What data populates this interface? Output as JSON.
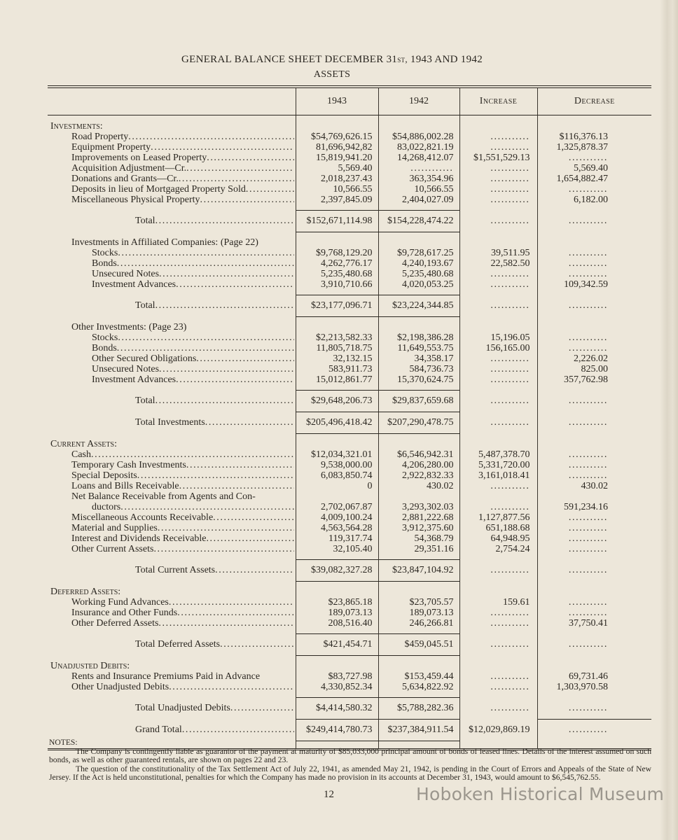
{
  "header": {
    "title_main": "GENERAL BALANCE SHEET DECEMBER 31",
    "title_ordinal": "st,",
    "title_rest": " 1943 AND 1942",
    "subtitle": "ASSETS"
  },
  "columns": [
    "1943",
    "1942",
    "Increase",
    "Decrease"
  ],
  "rows": [
    {
      "t": "head",
      "i": 0,
      "label": "Investments:"
    },
    {
      "t": "item",
      "i": 1,
      "label": "Road Property",
      "a": "$54,769,626.15",
      "b": "$54,886,002.28",
      "inc": "...........",
      "dec": "$116,376.13"
    },
    {
      "t": "item",
      "i": 1,
      "label": "Equipment Property",
      "a": "81,696,942,82",
      "b": "83,022,821.19",
      "inc": "...........",
      "dec": "1,325,878.37"
    },
    {
      "t": "item",
      "i": 1,
      "label": "Improvements on Leased Property",
      "a": "15,819,941.20",
      "b": "14,268,412.07",
      "inc": "$1,551,529.13",
      "dec": "..........."
    },
    {
      "t": "item",
      "i": 1,
      "label": "Acquisition Adjustment—Cr.",
      "a": "5,569.40",
      "b": "............",
      "inc": "...........",
      "dec": "5,569.40"
    },
    {
      "t": "item",
      "i": 1,
      "label": "Donations and Grants—Cr.",
      "a": "2,018,237.43",
      "b": "363,354.96",
      "inc": "...........",
      "dec": "1,654,882.47"
    },
    {
      "t": "item",
      "i": 1,
      "label": "Deposits in lieu of Mortgaged Property Sold",
      "a": "10,566.55",
      "b": "10,566.55",
      "inc": "...........",
      "dec": "..........."
    },
    {
      "t": "item",
      "i": 1,
      "label": "Miscellaneous Physical Property",
      "a": "2,397,845.09",
      "b": "2,404,027.09",
      "inc": "...........",
      "dec": "6,182.00"
    },
    {
      "t": "total",
      "i": 3,
      "label": "Total",
      "a": "$152,671,114.98",
      "b": "$154,228,474.22",
      "inc": "...........",
      "dec": "..........."
    },
    {
      "t": "sub",
      "i": 1,
      "label": "Investments in Affiliated Companies: (Page 22)"
    },
    {
      "t": "item",
      "i": 2,
      "label": "Stocks",
      "a": "$9,768,129.20",
      "b": "$9,728,617.25",
      "inc": "39,511.95",
      "dec": "..........."
    },
    {
      "t": "item",
      "i": 2,
      "label": "Bonds",
      "a": "4,262,776.17",
      "b": "4,240,193.67",
      "inc": "22,582.50",
      "dec": "..........."
    },
    {
      "t": "item",
      "i": 2,
      "label": "Unsecured Notes",
      "a": "5,235,480.68",
      "b": "5,235,480.68",
      "inc": "...........",
      "dec": "..........."
    },
    {
      "t": "item",
      "i": 2,
      "label": "Investment Advances",
      "a": "3,910,710.66",
      "b": "4,020,053.25",
      "inc": "...........",
      "dec": "109,342.59"
    },
    {
      "t": "total",
      "i": 3,
      "label": "Total",
      "a": "$23,177,096.71",
      "b": "$23,224,344.85",
      "inc": "...........",
      "dec": "..........."
    },
    {
      "t": "sub",
      "i": 1,
      "label": "Other Investments: (Page 23)"
    },
    {
      "t": "item",
      "i": 2,
      "label": "Stocks",
      "a": "$2,213,582.33",
      "b": "$2,198,386.28",
      "inc": "15,196.05",
      "dec": "..........."
    },
    {
      "t": "item",
      "i": 2,
      "label": "Bonds",
      "a": "11,805,718.75",
      "b": "11,649,553.75",
      "inc": "156,165.00",
      "dec": "..........."
    },
    {
      "t": "item",
      "i": 2,
      "label": "Other Secured Obligations",
      "a": "32,132.15",
      "b": "34,358.17",
      "inc": "...........",
      "dec": "2,226.02"
    },
    {
      "t": "item",
      "i": 2,
      "label": "Unsecured Notes",
      "a": "583,911.73",
      "b": "584,736.73",
      "inc": "...........",
      "dec": "825.00"
    },
    {
      "t": "item",
      "i": 2,
      "label": "Investment Advances",
      "a": "15,012,861.77",
      "b": "15,370,624.75",
      "inc": "...........",
      "dec": "357,762.98"
    },
    {
      "t": "total",
      "i": 3,
      "label": "Total",
      "a": "$29,648,206.73",
      "b": "$29,837,659.68",
      "inc": "...........",
      "dec": "..........."
    },
    {
      "t": "total2",
      "i": 3,
      "label": "Total Investments",
      "a": "$205,496,418.42",
      "b": "$207,290,478.75",
      "inc": "...........",
      "dec": "..........."
    },
    {
      "t": "head",
      "i": 0,
      "label": "Current Assets:"
    },
    {
      "t": "item",
      "i": 1,
      "label": "Cash",
      "a": "$12,034,321.01",
      "b": "$6,546,942.31",
      "inc": "5,487,378.70",
      "dec": "..........."
    },
    {
      "t": "item",
      "i": 1,
      "label": "Temporary Cash Investments",
      "a": "9,538,000.00",
      "b": "4,206,280.00",
      "inc": "5,331,720.00",
      "dec": "..........."
    },
    {
      "t": "item",
      "i": 1,
      "label": "Special Deposits",
      "a": "6,083,850.74",
      "b": "2,922,832.33",
      "inc": "3,161,018.41",
      "dec": "..........."
    },
    {
      "t": "item",
      "i": 1,
      "label": "Loans and Bills Receivable",
      "a": "0",
      "b": "430.02",
      "inc": "...........",
      "dec": "430.02"
    },
    {
      "t": "sub",
      "i": 1,
      "label": "Net Balance Receivable from Agents and Con-"
    },
    {
      "t": "item",
      "i": 2,
      "label": "ductors",
      "a": "2,702,067.87",
      "b": "3,293,302.03",
      "inc": "...........",
      "dec": "591,234.16"
    },
    {
      "t": "item",
      "i": 1,
      "label": "Miscellaneous Accounts Receivable",
      "a": "4,009,100.24",
      "b": "2,881,222.68",
      "inc": "1,127,877.56",
      "dec": "..........."
    },
    {
      "t": "item",
      "i": 1,
      "label": "Material and Supplies",
      "a": "4,563,564.28",
      "b": "3,912,375.60",
      "inc": "651,188.68",
      "dec": "..........."
    },
    {
      "t": "item",
      "i": 1,
      "label": "Interest and Dividends Receivable",
      "a": "119,317.74",
      "b": "54,368.79",
      "inc": "64,948.95",
      "dec": "..........."
    },
    {
      "t": "item",
      "i": 1,
      "label": "Other Current Assets",
      "a": "32,105.40",
      "b": "29,351.16",
      "inc": "2,754.24",
      "dec": "..........."
    },
    {
      "t": "total",
      "i": 3,
      "label": "Total Current Assets",
      "a": "$39,082,327.28",
      "b": "$23,847,104.92",
      "inc": "...........",
      "dec": "..........."
    },
    {
      "t": "head",
      "i": 0,
      "label": "Deferred Assets:"
    },
    {
      "t": "item",
      "i": 1,
      "label": "Working Fund Advances",
      "a": "$23,865.18",
      "b": "$23,705.57",
      "inc": "159.61",
      "dec": "..........."
    },
    {
      "t": "item",
      "i": 1,
      "label": "Insurance and Other Funds",
      "a": "189,073.13",
      "b": "189,073.13",
      "inc": "...........",
      "dec": "..........."
    },
    {
      "t": "item",
      "i": 1,
      "label": "Other Deferred Assets",
      "a": "208,516.40",
      "b": "246,266.81",
      "inc": "...........",
      "dec": "37,750.41"
    },
    {
      "t": "total",
      "i": 3,
      "label": "Total Deferred Assets",
      "a": "$421,454.71",
      "b": "$459,045.51",
      "inc": "...........",
      "dec": "..........."
    },
    {
      "t": "head",
      "i": 0,
      "label": "Unadjusted Debits:"
    },
    {
      "t": "sub",
      "i": 1,
      "label": "Rents and Insurance Premiums Paid in Advance",
      "a": "$83,727.98",
      "b": "$153,459.44",
      "inc": "...........",
      "dec": "69,731.46"
    },
    {
      "t": "item",
      "i": 1,
      "label": "Other Unadjusted Debits",
      "a": "4,330,852.34",
      "b": "5,634,822.92",
      "inc": "...........",
      "dec": "1,303,970.58"
    },
    {
      "t": "total",
      "i": 3,
      "label": "Total Unadjusted Debits",
      "a": "$4,414,580.32",
      "b": "$5,788,282.36",
      "inc": "...........",
      "dec": "..........."
    },
    {
      "t": "grand",
      "i": 3,
      "label": "Grand Total",
      "a": "$249,414,780.73",
      "b": "$237,384,911.54",
      "inc": "$12,029,869.19",
      "dec": "..........."
    }
  ],
  "notes": {
    "heading": "NOTES:",
    "paragraphs": [
      "The Company is contingently liable as guarantor of the payment at maturity of $85,033,000 principal amount of bonds of leased lines. Details of the interest assumed on such bonds, as well as other guaranteed rentals, are shown on pages 22 and 23.",
      "The question of the constitutionality of the Tax Settlement Act of July 22, 1941, as amended May 21, 1942, is pending in the Court of Errors and Appeals of the State of New Jersey. If the Act is held unconstitutional, penalties for which the Company has made no provision in its accounts at December 31, 1943, would amount to $6,545,762.55."
    ]
  },
  "page_number": "12",
  "watermark": "Hoboken Historical Museum"
}
